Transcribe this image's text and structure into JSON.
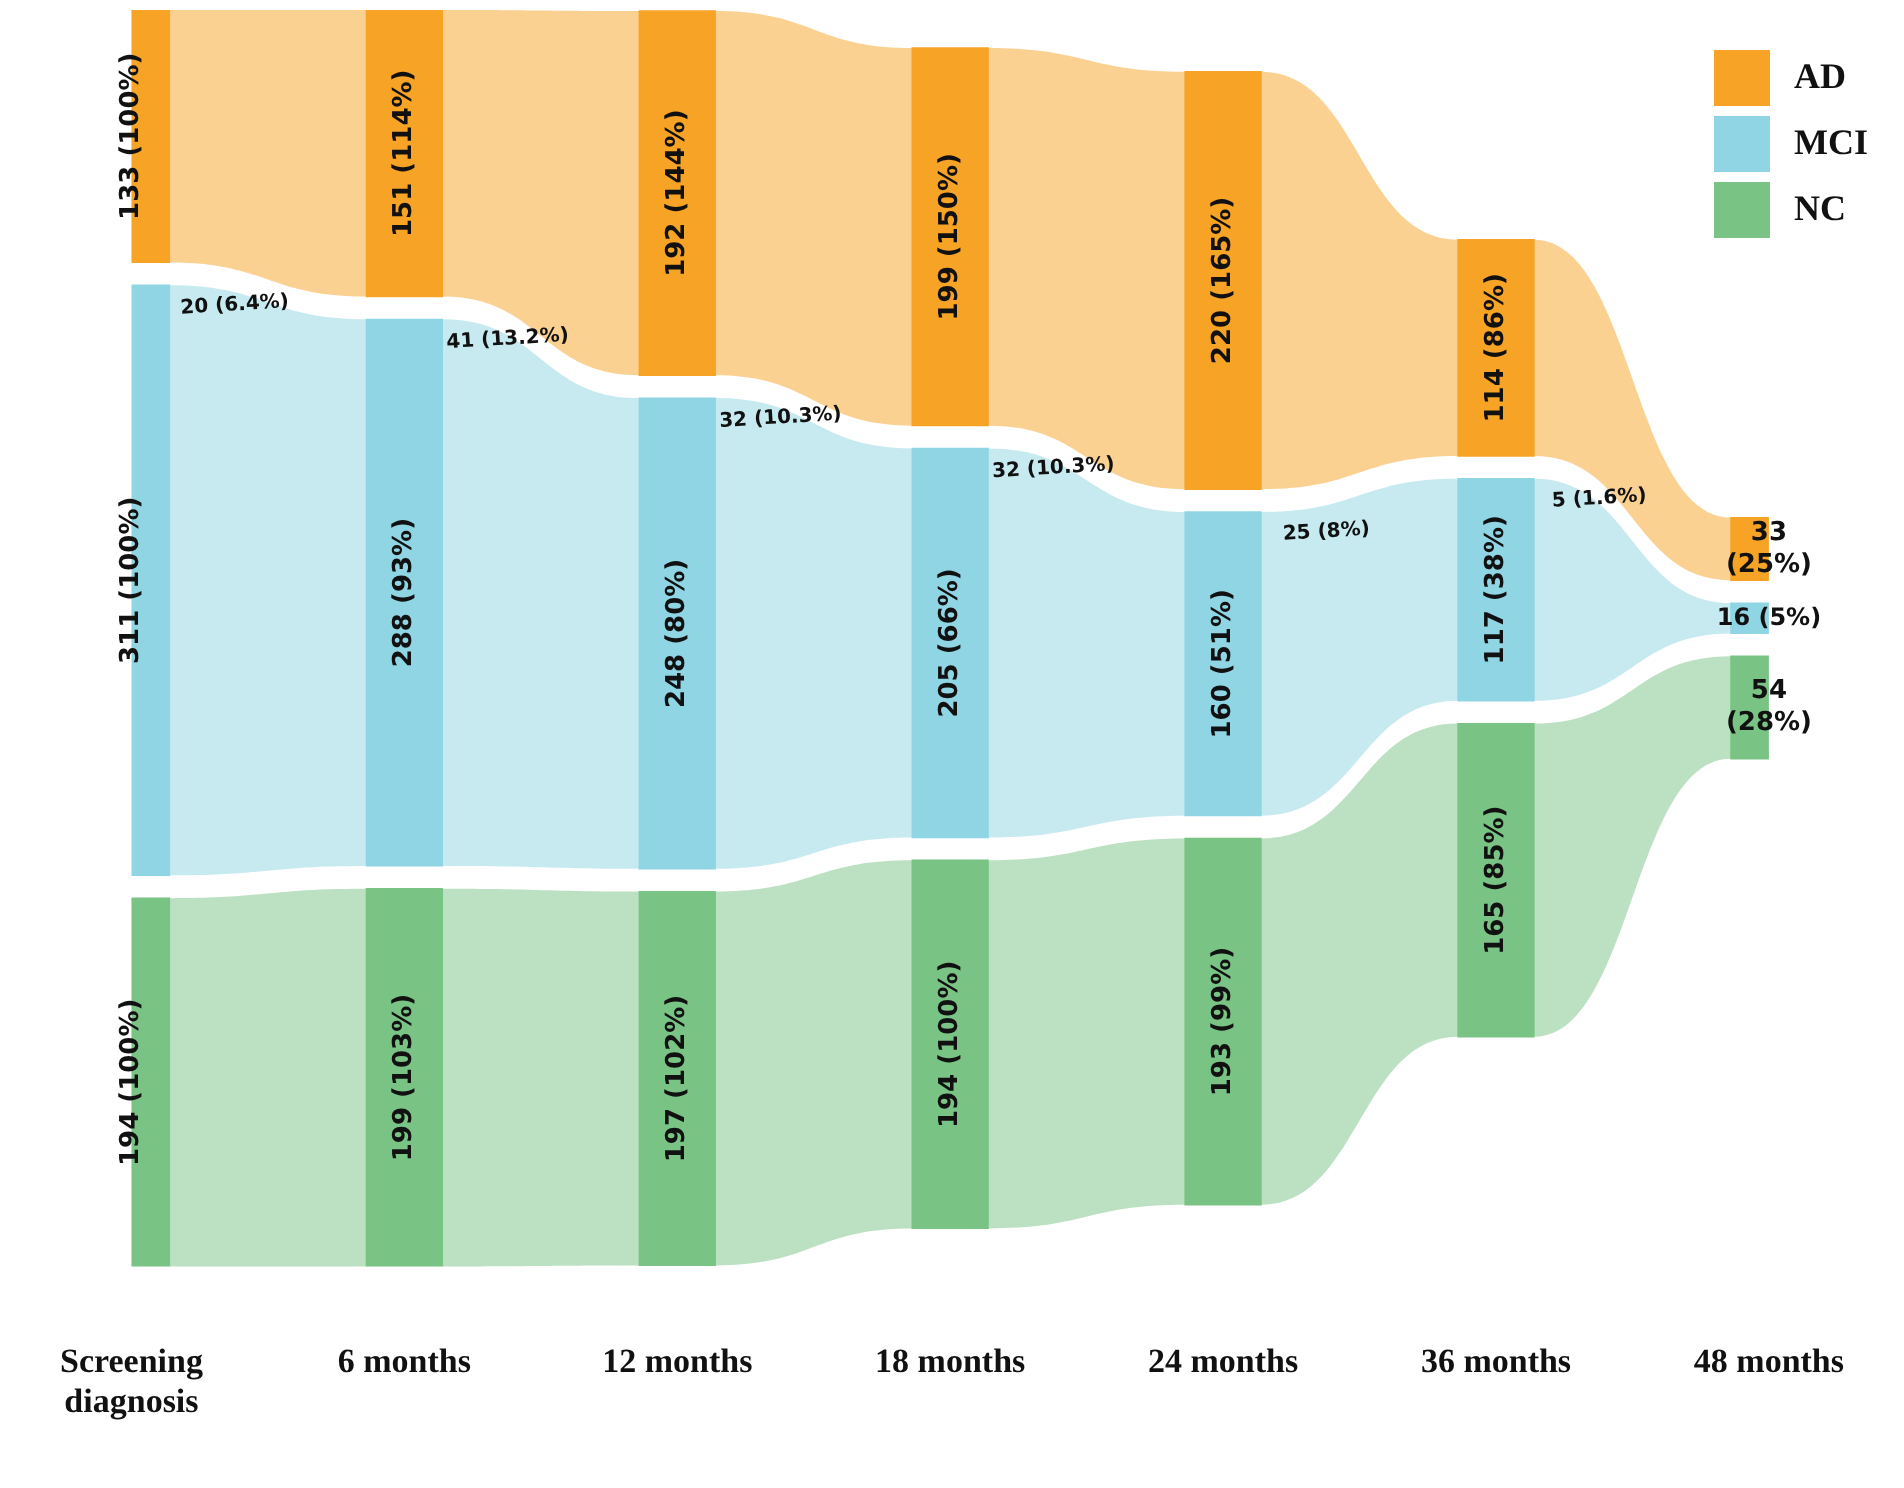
{
  "chart_data": {
    "type": "other",
    "categories": [
      "Screening diagnosis",
      "6 months",
      "12 months",
      "18 months",
      "24 months",
      "36 months",
      "48 months"
    ],
    "series": [
      {
        "name": "AD",
        "color": "#f7a325",
        "values": [
          133,
          151,
          192,
          199,
          220,
          114,
          33
        ],
        "value_labels": [
          "133 (100%)",
          "151 (114%)",
          "192 (144%)",
          "199 (150%)",
          "220 (165%)",
          "114 (86%)",
          "33 (25%)"
        ]
      },
      {
        "name": "MCI",
        "color": "#90d5e4",
        "values": [
          311,
          288,
          248,
          205,
          160,
          117,
          16
        ],
        "value_labels": [
          "311 (100%)",
          "288 (93%)",
          "248 (80%)",
          "205 (66%)",
          "160 (51%)",
          "117 (38%)",
          "16 (5%)"
        ]
      },
      {
        "name": "NC",
        "color": "#79c485",
        "values": [
          194,
          199,
          197,
          194,
          193,
          165,
          54
        ],
        "value_labels": [
          "194 (100%)",
          "199 (103%)",
          "197 (102%)",
          "194 (100%)",
          "193 (99%)",
          "165 (85%)",
          "54 (28%)"
        ]
      }
    ],
    "annotations": [
      "20 (6.4%)",
      "41 (13.2%)",
      "32 (10.3%)",
      "32 (10.3%)",
      "25 (8%)",
      "5 (1.6%)"
    ],
    "legend": "top right"
  }
}
